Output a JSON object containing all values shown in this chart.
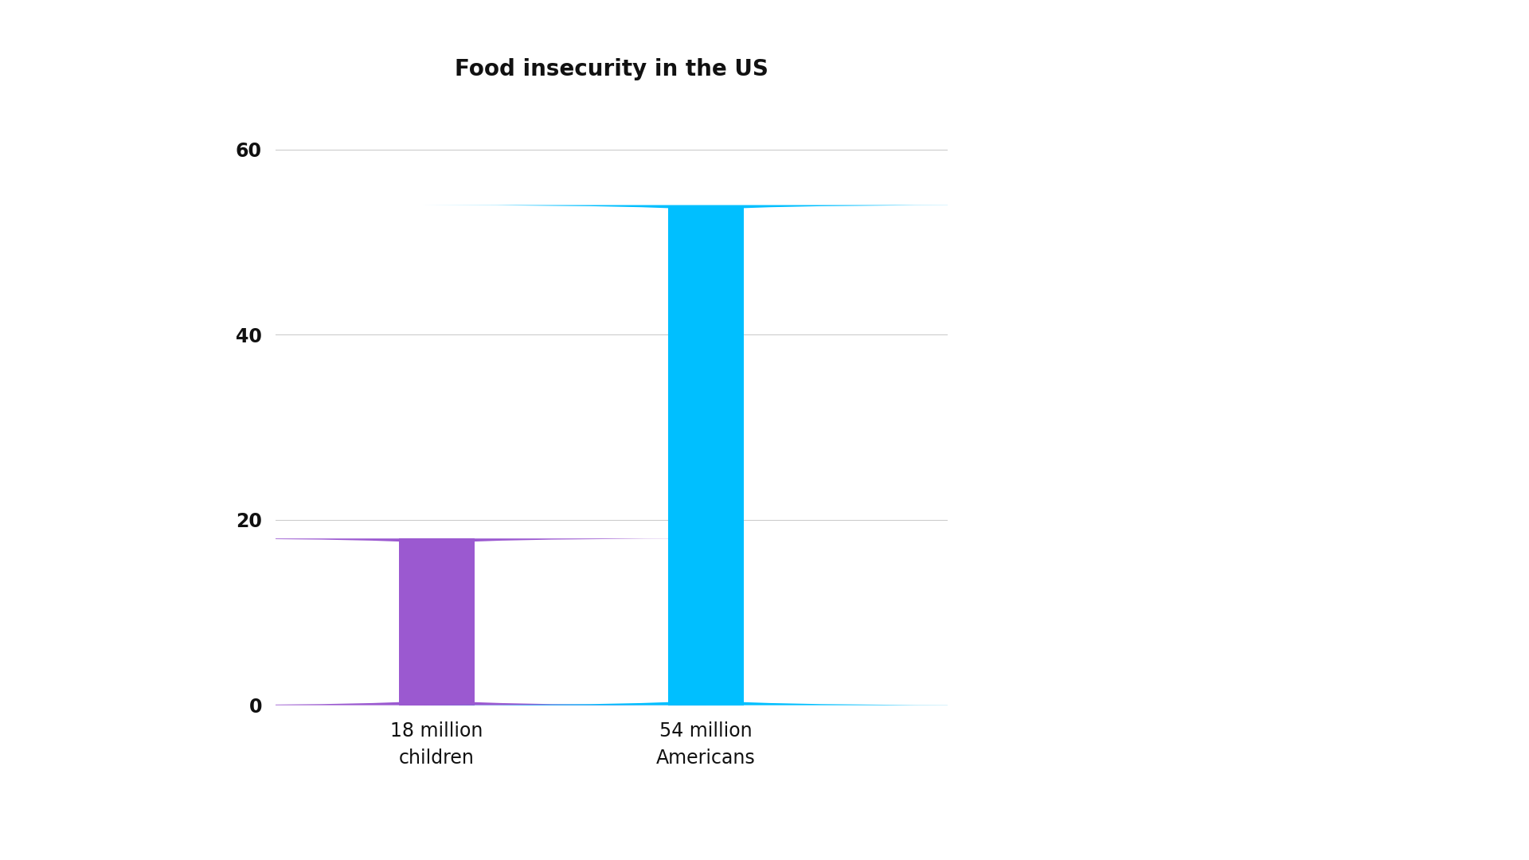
{
  "title": "Food insecurity in the US",
  "categories": [
    "18 million\nchildren",
    "54 million\nAmericans"
  ],
  "values": [
    18,
    54
  ],
  "bar_colors": [
    "#9B59D0",
    "#00BFFF"
  ],
  "ylim": [
    0,
    65
  ],
  "yticks": [
    0,
    20,
    40,
    60
  ],
  "background_color": "#ffffff",
  "title_fontsize": 20,
  "tick_fontsize": 17,
  "xlabel_fontsize": 17,
  "bar_width": 0.28,
  "x_positions": [
    1,
    2
  ],
  "xlim": [
    0.4,
    2.9
  ]
}
